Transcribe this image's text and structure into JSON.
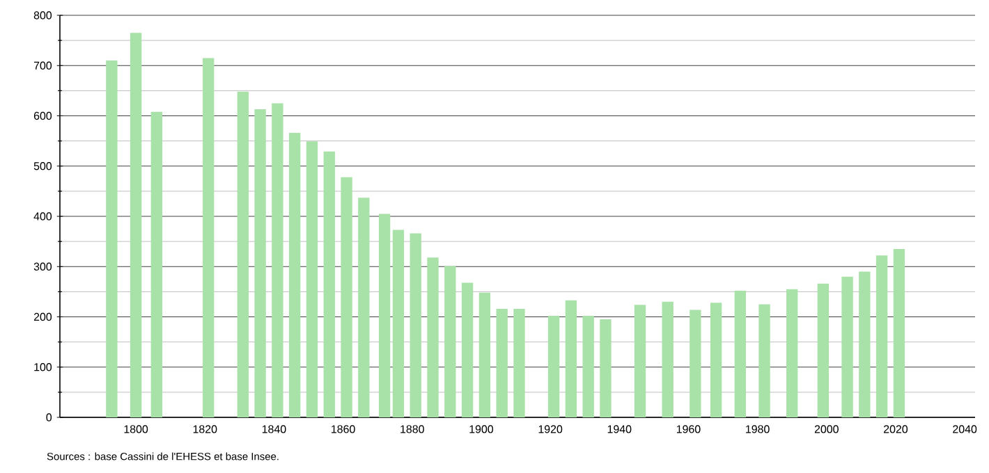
{
  "chart_data": {
    "type": "bar",
    "x": [
      1793,
      1800,
      1806,
      1821,
      1831,
      1836,
      1841,
      1846,
      1851,
      1856,
      1861,
      1866,
      1872,
      1876,
      1881,
      1886,
      1891,
      1896,
      1901,
      1906,
      1911,
      1921,
      1926,
      1931,
      1936,
      1946,
      1954,
      1962,
      1968,
      1975,
      1982,
      1990,
      1999,
      2006,
      2011,
      2016,
      2021
    ],
    "values": [
      710,
      765,
      608,
      715,
      648,
      613,
      625,
      566,
      549,
      529,
      478,
      437,
      405,
      373,
      366,
      318,
      301,
      268,
      248,
      216,
      216,
      202,
      233,
      202,
      195,
      224,
      230,
      214,
      228,
      252,
      225,
      255,
      266,
      280,
      290,
      322,
      335
    ],
    "color": "#a8e2a8",
    "xlim": [
      1778,
      2043
    ],
    "ylim": [
      0,
      800
    ],
    "xticks": [
      1800,
      1820,
      1840,
      1860,
      1880,
      1900,
      1920,
      1940,
      1960,
      1980,
      2000,
      2020,
      2040
    ],
    "yticks": [
      0,
      100,
      200,
      300,
      400,
      500,
      600,
      700,
      800
    ],
    "grid": "y",
    "annotations": [
      "Sources : base Cassini de l'EHESS et base Insee."
    ]
  }
}
